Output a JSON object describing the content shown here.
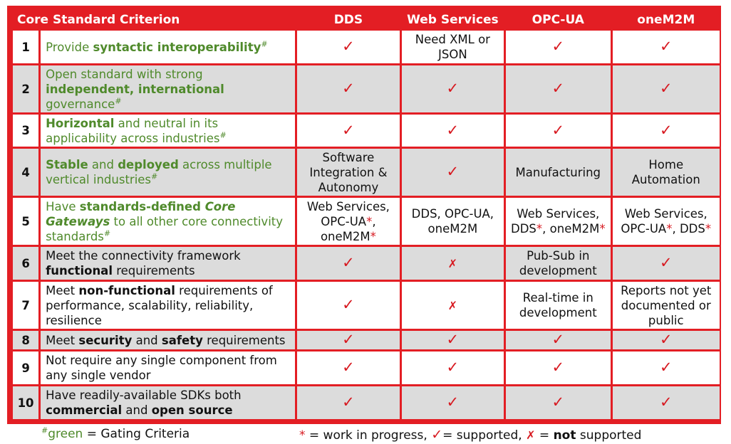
{
  "header": {
    "criterion": "Core Standard Criterion",
    "dds": "DDS",
    "ws": "Web Services",
    "opcua": "OPC-UA",
    "onem2m": "oneM2M"
  },
  "marks": {
    "check": "✓",
    "cross": "✗",
    "star": "*",
    "hash": "#"
  },
  "rows": [
    {
      "num": "1",
      "crit_a": "Provide ",
      "crit_b": "syntactic interoperability",
      "ws": "Need XML or JSON"
    },
    {
      "num": "2",
      "crit_a": "Open standard with strong ",
      "crit_b": "independent, international",
      "crit_c": " governance"
    },
    {
      "num": "3",
      "crit_a": "Horizontal",
      "crit_b": " and neutral in its applicability across industries"
    },
    {
      "num": "4",
      "crit_a": "Stable",
      "crit_b": " and ",
      "crit_c": "deployed",
      "crit_d": " across multiple vertical industries",
      "dds": "Software Integration & Autonomy",
      "opcua": "Manufacturing",
      "onem2m": "Home Automation"
    },
    {
      "num": "5",
      "crit_a": "Have ",
      "crit_b": "standards-defined ",
      "crit_c": "Core Gateways",
      "crit_d": " to all other core connectivity standards",
      "dds_a": "Web Services, ",
      "dds_b": "OPC-UA",
      "dds_c": ", ",
      "dds_d": "oneM2M",
      "ws": "DDS, OPC-UA, oneM2M",
      "opc_a": "Web Services, ",
      "opc_b": "DDS",
      "opc_c": ", ",
      "opc_d": "oneM2M",
      "m2m_a": "Web Services, ",
      "m2m_b": "OPC-UA",
      "m2m_c": ", ",
      "m2m_d": "DDS"
    },
    {
      "num": "6",
      "crit_a": "Meet the connectivity framework ",
      "crit_b": "functional",
      "crit_c": " requirements",
      "opcua": "Pub-Sub in development"
    },
    {
      "num": "7",
      "crit_a": "Meet ",
      "crit_b": "non-functional",
      "crit_c": " requirements of performance, scalability, reliability, resilience",
      "opcua": "Real-time in development",
      "onem2m": "Reports not yet documented or public"
    },
    {
      "num": "8",
      "crit_a": "Meet ",
      "crit_b": "security",
      "crit_c": " and ",
      "crit_d": "safety",
      "crit_e": " requirements"
    },
    {
      "num": "9",
      "crit_a": "Not require any single component from any single vendor"
    },
    {
      "num": "10",
      "crit_a": "Have readily-available SDKs both ",
      "crit_b": "commercial",
      "crit_c": " and ",
      "crit_d": "open source"
    }
  ],
  "legend": {
    "hash": "#",
    "green_word": "green",
    "green_rest": " = Gating Criteria",
    "star": "*",
    "wip": " = work in progress, ",
    "check": "✓",
    "supported": "= supported, ",
    "cross": "✗",
    "eq": " = ",
    "not": "not",
    "supported2": " supported"
  },
  "colors": {
    "frame": "#e31e24",
    "row_alt": "#dcdcdc",
    "green": "#4f8a2b",
    "mark": "#d71920"
  }
}
